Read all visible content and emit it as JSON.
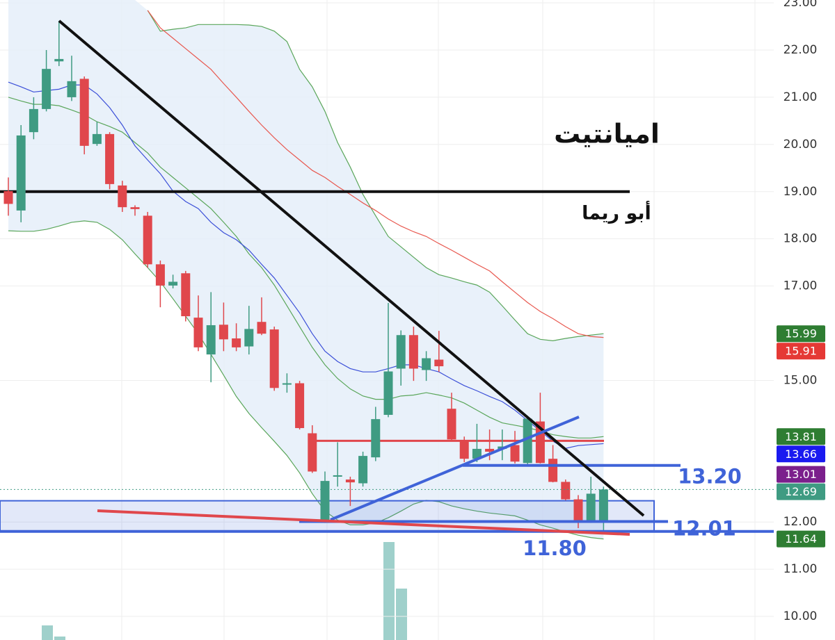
{
  "chart_data": {
    "type": "candlestick",
    "title": "اميانتيت",
    "subtitle": "أبو ريما",
    "open": [
      19.01,
      18.6,
      20.26,
      20.75,
      21.76,
      21.0,
      21.39,
      20.01,
      20.22,
      19.13,
      18.67,
      18.49,
      17.46,
      17.01,
      17.27,
      16.33,
      15.55,
      16.18,
      15.89,
      15.72,
      16.24,
      16.08,
      14.91,
      14.94,
      13.88,
      11.98,
      12.96,
      12.9,
      12.82,
      13.37,
      14.27,
      15.25,
      15.96,
      15.22,
      15.44,
      14.4,
      13.74,
      13.34,
      13.55,
      13.55,
      13.63,
      13.25,
      14.13,
      13.34,
      12.85,
      12.48,
      12.0,
      12.0
    ],
    "high": [
      19.3,
      20.41,
      21.0,
      22.0,
      22.62,
      21.88,
      21.44,
      20.48,
      20.26,
      19.23,
      18.71,
      18.57,
      17.54,
      17.24,
      17.32,
      16.8,
      16.87,
      16.65,
      16.21,
      16.58,
      16.76,
      16.14,
      15.15,
      14.99,
      14.05,
      13.07,
      13.69,
      12.96,
      13.49,
      14.44,
      16.64,
      16.06,
      16.14,
      15.62,
      16.05,
      14.74,
      13.81,
      14.08,
      13.96,
      13.96,
      13.93,
      14.25,
      14.74,
      13.63,
      12.9,
      12.57,
      12.96,
      12.75
    ],
    "low": [
      18.49,
      18.35,
      20.11,
      20.7,
      21.66,
      20.92,
      19.79,
      19.97,
      19.05,
      18.57,
      18.49,
      17.39,
      16.55,
      16.95,
      16.25,
      15.62,
      14.96,
      15.62,
      15.62,
      15.55,
      15.96,
      14.78,
      14.74,
      13.96,
      13.04,
      11.98,
      12.75,
      12.34,
      12.75,
      13.29,
      14.22,
      14.89,
      14.99,
      14.99,
      15.18,
      13.74,
      13.27,
      13.27,
      13.31,
      13.31,
      13.24,
      13.19,
      13.24,
      12.84,
      12.46,
      11.87,
      11.98,
      11.79
    ],
    "close": [
      18.74,
      20.19,
      20.75,
      21.6,
      21.81,
      21.34,
      19.97,
      20.22,
      19.16,
      18.67,
      18.63,
      17.46,
      17.01,
      17.09,
      16.36,
      15.7,
      16.17,
      15.87,
      15.7,
      16.09,
      15.99,
      14.84,
      14.94,
      13.99,
      13.07,
      12.87,
      12.99,
      12.84,
      13.4,
      14.18,
      15.19,
      15.96,
      15.25,
      15.47,
      15.3,
      13.75,
      13.34,
      13.55,
      13.49,
      13.6,
      13.28,
      14.19,
      13.25,
      12.85,
      12.48,
      12.01,
      12.6,
      12.69
    ],
    "up_color": "#3f9b82",
    "down_color": "#e0474c",
    "bands": {
      "color": "#5aa65a",
      "fill": "#e4eef9",
      "upper": [
        null,
        null,
        null,
        null,
        null,
        null,
        null,
        null,
        null,
        null,
        null,
        22.84,
        22.4,
        22.44,
        22.47,
        22.54,
        22.54,
        22.54,
        22.54,
        22.53,
        22.5,
        22.4,
        22.18,
        21.59,
        21.22,
        20.7,
        20.04,
        19.52,
        18.94,
        18.49,
        18.05,
        17.83,
        17.61,
        17.39,
        17.24,
        17.17,
        17.09,
        17.02,
        16.87,
        16.58,
        16.28,
        15.99,
        15.87,
        15.84,
        15.89,
        15.93,
        15.96,
        15.99
      ],
      "lower": [
        18.17,
        18.16,
        18.16,
        18.2,
        18.27,
        18.35,
        18.38,
        18.35,
        18.2,
        17.98,
        17.68,
        17.39,
        17.09,
        16.73,
        16.36,
        15.99,
        15.55,
        15.11,
        14.66,
        14.3,
        14.0,
        13.71,
        13.41,
        13.04,
        12.6,
        12.23,
        12.04,
        11.94,
        11.94,
        11.98,
        12.09,
        12.23,
        12.38,
        12.46,
        12.43,
        12.34,
        12.28,
        12.23,
        12.19,
        12.16,
        12.13,
        12.04,
        11.94,
        11.87,
        11.79,
        11.72,
        11.67,
        11.64
      ]
    },
    "lines": [
      {
        "color": "#5aa65a",
        "values": [
          21.0,
          20.92,
          20.85,
          20.85,
          20.82,
          20.73,
          20.63,
          20.48,
          20.38,
          20.26,
          20.04,
          19.82,
          19.52,
          19.3,
          19.08,
          18.86,
          18.64,
          18.35,
          18.05,
          17.68,
          17.39,
          17.02,
          16.58,
          16.14,
          15.7,
          15.33,
          15.04,
          14.82,
          14.67,
          14.6,
          14.6,
          14.67,
          14.69,
          14.74,
          14.69,
          14.63,
          14.52,
          14.37,
          14.22,
          14.1,
          14.05,
          14.0,
          13.93,
          13.85,
          13.81,
          13.78,
          13.78,
          13.81
        ]
      },
      {
        "color": "#3b4fd8",
        "values": [
          21.32,
          21.22,
          21.11,
          21.14,
          21.17,
          21.26,
          21.26,
          21.07,
          20.78,
          20.41,
          19.97,
          19.67,
          19.38,
          19.01,
          18.79,
          18.64,
          18.35,
          18.13,
          17.98,
          17.76,
          17.46,
          17.17,
          16.8,
          16.43,
          15.99,
          15.62,
          15.4,
          15.25,
          15.18,
          15.18,
          15.25,
          15.33,
          15.33,
          15.25,
          15.18,
          15.03,
          14.89,
          14.78,
          14.66,
          14.55,
          14.37,
          14.15,
          13.93,
          13.71,
          13.56,
          13.62,
          13.64,
          13.66
        ]
      },
      {
        "color": "#e8584f",
        "values": [
          null,
          null,
          null,
          null,
          null,
          null,
          null,
          null,
          null,
          null,
          null,
          22.84,
          22.47,
          22.25,
          22.03,
          21.81,
          21.59,
          21.29,
          21.0,
          20.7,
          20.41,
          20.14,
          19.89,
          19.67,
          19.45,
          19.3,
          19.11,
          18.94,
          18.76,
          18.6,
          18.42,
          18.27,
          18.15,
          18.05,
          17.9,
          17.76,
          17.61,
          17.46,
          17.32,
          17.09,
          16.87,
          16.65,
          16.46,
          16.31,
          16.14,
          15.99,
          15.93,
          15.91
        ]
      }
    ],
    "levels": [
      {
        "value": 19.0,
        "color": "#111111"
      },
      {
        "value": 13.72,
        "color": "#e0474c"
      }
    ],
    "zone": {
      "low": 11.8,
      "high": 12.45,
      "color": "#3f63d8"
    },
    "annotations": [
      {
        "value": 13.2,
        "label": "13.20",
        "color": "#3f63d8"
      },
      {
        "value": 12.01,
        "label": "12.01",
        "color": "#3f63d8"
      },
      {
        "value": 11.8,
        "label": "11.80",
        "color": "#3f63d8"
      }
    ],
    "price_labels": [
      {
        "value": 15.99,
        "color": "#2e7d32"
      },
      {
        "value": 15.91,
        "color": "#e53935"
      },
      {
        "value": 13.81,
        "color": "#2e7d32"
      },
      {
        "value": 13.66,
        "color": "#1a1af0"
      },
      {
        "value": 13.01,
        "color": "#7b1f8c"
      },
      {
        "value": 12.69,
        "color": "#3f9b82"
      },
      {
        "value": 11.64,
        "color": "#2e7d32"
      }
    ],
    "ylim": [
      9.5,
      23.06
    ],
    "yticks": [
      {
        "value": 23,
        "label": "23.00"
      },
      {
        "value": 22,
        "label": "22.00"
      },
      {
        "value": 21,
        "label": "21.00"
      },
      {
        "value": 20,
        "label": "20.00"
      },
      {
        "value": 19,
        "label": "19.00"
      },
      {
        "value": 18,
        "label": "18.00"
      },
      {
        "value": 17,
        "label": "17.00"
      },
      {
        "value": 15,
        "label": "15.00"
      },
      {
        "value": 12,
        "label": "12.00"
      },
      {
        "value": 11,
        "label": "11.00"
      },
      {
        "value": 10,
        "label": "10.00"
      }
    ],
    "grid": true
  }
}
